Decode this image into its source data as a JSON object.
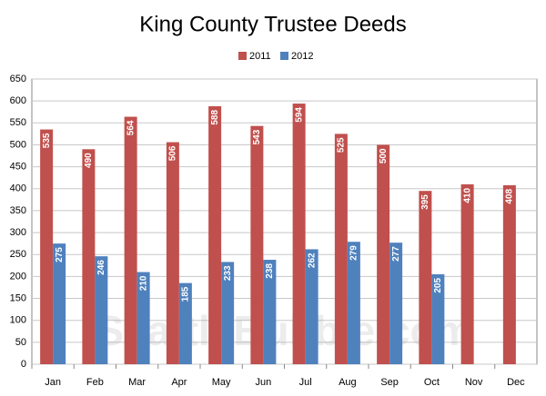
{
  "chart_data": {
    "type": "bar",
    "title": "King County Trustee Deeds",
    "watermark": "SeattleBubble.com",
    "categories": [
      "Jan",
      "Feb",
      "Mar",
      "Apr",
      "May",
      "Jun",
      "Jul",
      "Aug",
      "Sep",
      "Oct",
      "Nov",
      "Dec"
    ],
    "series": [
      {
        "name": "2011",
        "color": "#c0504d",
        "values": [
          535,
          490,
          564,
          506,
          588,
          543,
          594,
          525,
          500,
          395,
          410,
          408
        ]
      },
      {
        "name": "2012",
        "color": "#4f81bd",
        "values": [
          275,
          246,
          210,
          185,
          233,
          238,
          262,
          279,
          277,
          205,
          null,
          null
        ]
      }
    ],
    "ylim": [
      0,
      650
    ],
    "yticks": [
      0,
      50,
      100,
      150,
      200,
      250,
      300,
      350,
      400,
      450,
      500,
      550,
      600,
      650
    ],
    "grid": true,
    "legend": "top"
  }
}
